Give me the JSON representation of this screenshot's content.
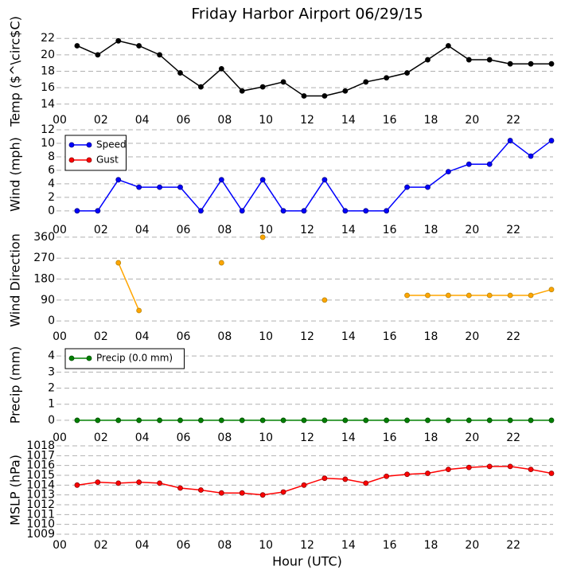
{
  "chart_data": [
    {
      "type": "line",
      "title": "Friday Harbor Airport 06/29/15",
      "ylabel": "Temp ($^\\circ$C)",
      "x": [
        1,
        2,
        3,
        4,
        5,
        6,
        7,
        8,
        9,
        10,
        11,
        12,
        13,
        14,
        15,
        16,
        17,
        18,
        19,
        20,
        21,
        22,
        23,
        24
      ],
      "xlim": [
        0,
        24
      ],
      "xticks": [
        {
          "value": 0,
          "label": "00"
        },
        {
          "value": 2,
          "label": "02"
        },
        {
          "value": 4,
          "label": "04"
        },
        {
          "value": 6,
          "label": "06"
        },
        {
          "value": 8,
          "label": "08"
        },
        {
          "value": 10,
          "label": "10"
        },
        {
          "value": 12,
          "label": "12"
        },
        {
          "value": 14,
          "label": "14"
        },
        {
          "value": 16,
          "label": "16"
        },
        {
          "value": 18,
          "label": "18"
        },
        {
          "value": 20,
          "label": "20"
        },
        {
          "value": 22,
          "label": "22"
        }
      ],
      "ylim": [
        13.4,
        22.6
      ],
      "yticks": [
        14,
        16,
        18,
        20,
        22
      ],
      "grid": true,
      "series": [
        {
          "name": "Temp",
          "color": "#000000",
          "values": [
            21.1,
            20,
            21.7,
            21.1,
            20,
            17.8,
            16.1,
            18.3,
            15.6,
            16.1,
            16.7,
            15,
            15,
            15.6,
            16.7,
            17.2,
            17.8,
            19.4,
            21.1,
            19.4,
            19.4,
            18.9,
            18.9,
            18.9
          ]
        }
      ]
    },
    {
      "type": "line",
      "ylabel": "Wind (mph)",
      "legend": "upper left",
      "x": [
        1,
        2,
        3,
        4,
        5,
        6,
        7,
        8,
        9,
        10,
        11,
        12,
        13,
        14,
        15,
        16,
        17,
        18,
        19,
        20,
        21,
        22,
        23,
        24
      ],
      "xlim": [
        0,
        24
      ],
      "xticks": [
        {
          "value": 0,
          "label": "00"
        },
        {
          "value": 2,
          "label": "02"
        },
        {
          "value": 4,
          "label": "04"
        },
        {
          "value": 6,
          "label": "06"
        },
        {
          "value": 8,
          "label": "08"
        },
        {
          "value": 10,
          "label": "10"
        },
        {
          "value": 12,
          "label": "12"
        },
        {
          "value": 14,
          "label": "14"
        },
        {
          "value": 16,
          "label": "16"
        },
        {
          "value": 18,
          "label": "18"
        },
        {
          "value": 20,
          "label": "20"
        },
        {
          "value": 22,
          "label": "22"
        }
      ],
      "ylim": [
        -1.2,
        12
      ],
      "yticks": [
        0,
        2,
        4,
        6,
        8,
        10,
        12
      ],
      "grid": true,
      "series": [
        {
          "name": "Speed",
          "color": "#0000ff",
          "values": [
            0,
            0,
            4.6,
            3.5,
            3.5,
            3.5,
            0,
            4.6,
            0,
            4.6,
            0,
            0,
            4.6,
            0,
            0,
            0,
            3.5,
            3.5,
            5.8,
            6.9,
            6.9,
            10.4,
            8.1,
            10.4
          ]
        },
        {
          "name": "Gust",
          "color": "#ff0000",
          "values": [
            null,
            null,
            null,
            null,
            null,
            null,
            null,
            null,
            null,
            null,
            null,
            null,
            null,
            null,
            null,
            null,
            null,
            null,
            null,
            null,
            null,
            null,
            null,
            null
          ]
        }
      ]
    },
    {
      "type": "line",
      "ylabel": "Wind Direction",
      "x": [
        1,
        2,
        3,
        4,
        5,
        6,
        7,
        8,
        9,
        10,
        11,
        12,
        13,
        14,
        15,
        16,
        17,
        18,
        19,
        20,
        21,
        22,
        23,
        24
      ],
      "xlim": [
        0,
        24
      ],
      "xticks": [
        {
          "value": 0,
          "label": "00"
        },
        {
          "value": 2,
          "label": "02"
        },
        {
          "value": 4,
          "label": "04"
        },
        {
          "value": 6,
          "label": "06"
        },
        {
          "value": 8,
          "label": "08"
        },
        {
          "value": 10,
          "label": "10"
        },
        {
          "value": 12,
          "label": "12"
        },
        {
          "value": 14,
          "label": "14"
        },
        {
          "value": 16,
          "label": "16"
        },
        {
          "value": 18,
          "label": "18"
        },
        {
          "value": 20,
          "label": "20"
        },
        {
          "value": 22,
          "label": "22"
        }
      ],
      "ylim": [
        -20,
        370
      ],
      "yticks": [
        0,
        90,
        180,
        270,
        360
      ],
      "grid": true,
      "series": [
        {
          "name": "Direction",
          "color": "#ffa500",
          "values": [
            null,
            null,
            250,
            45,
            null,
            null,
            null,
            250,
            null,
            360,
            null,
            null,
            90,
            null,
            null,
            null,
            110,
            110,
            110,
            110,
            110,
            110,
            110,
            135
          ]
        }
      ]
    },
    {
      "type": "line",
      "ylabel": "Precip (mm)",
      "legend": "upper left",
      "x": [
        1,
        2,
        3,
        4,
        5,
        6,
        7,
        8,
        9,
        10,
        11,
        12,
        13,
        14,
        15,
        16,
        17,
        18,
        19,
        20,
        21,
        22,
        23,
        24
      ],
      "xlim": [
        0,
        24
      ],
      "xticks": [
        {
          "value": 0,
          "label": "00"
        },
        {
          "value": 2,
          "label": "02"
        },
        {
          "value": 4,
          "label": "04"
        },
        {
          "value": 6,
          "label": "06"
        },
        {
          "value": 8,
          "label": "08"
        },
        {
          "value": 10,
          "label": "10"
        },
        {
          "value": 12,
          "label": "12"
        },
        {
          "value": 14,
          "label": "14"
        },
        {
          "value": 16,
          "label": "16"
        },
        {
          "value": 18,
          "label": "18"
        },
        {
          "value": 20,
          "label": "20"
        },
        {
          "value": 22,
          "label": "22"
        }
      ],
      "ylim": [
        -0.4,
        4.8
      ],
      "yticks": [
        0,
        1,
        2,
        3,
        4
      ],
      "grid": true,
      "series": [
        {
          "name": "Precip (0.0 mm)",
          "color": "#008000",
          "values": [
            0,
            0,
            0,
            0,
            0,
            0,
            0,
            0,
            0,
            0,
            0,
            0,
            0,
            0,
            0,
            0,
            0,
            0,
            0,
            0,
            0,
            0,
            0,
            0
          ]
        }
      ]
    },
    {
      "type": "line",
      "ylabel": "MSLP (hPa)",
      "xlabel": "Hour (UTC)",
      "x": [
        1,
        2,
        3,
        4,
        5,
        6,
        7,
        8,
        9,
        10,
        11,
        12,
        13,
        14,
        15,
        16,
        17,
        18,
        19,
        20,
        21,
        22,
        23,
        24
      ],
      "xlim": [
        0,
        24
      ],
      "xticks": [
        {
          "value": 0,
          "label": "00"
        },
        {
          "value": 2,
          "label": "02"
        },
        {
          "value": 4,
          "label": "04"
        },
        {
          "value": 6,
          "label": "06"
        },
        {
          "value": 8,
          "label": "08"
        },
        {
          "value": 10,
          "label": "10"
        },
        {
          "value": 12,
          "label": "12"
        },
        {
          "value": 14,
          "label": "14"
        },
        {
          "value": 16,
          "label": "16"
        },
        {
          "value": 18,
          "label": "18"
        },
        {
          "value": 20,
          "label": "20"
        },
        {
          "value": 22,
          "label": "22"
        }
      ],
      "ylim": [
        1009,
        1018
      ],
      "yticks": [
        1009,
        1010,
        1011,
        1012,
        1013,
        1014,
        1015,
        1016,
        1017,
        1018
      ],
      "grid": true,
      "series": [
        {
          "name": "MSLP",
          "color": "#ff0000",
          "values": [
            1014,
            1014.3,
            1014.2,
            1014.3,
            1014.2,
            1013.7,
            1013.5,
            1013.2,
            1013.2,
            1013,
            1013.3,
            1014,
            1014.7,
            1014.6,
            1014.2,
            1014.9,
            1015.1,
            1015.2,
            1015.6,
            1015.8,
            1015.9,
            1015.9,
            1015.6,
            1015.2
          ]
        }
      ]
    }
  ]
}
